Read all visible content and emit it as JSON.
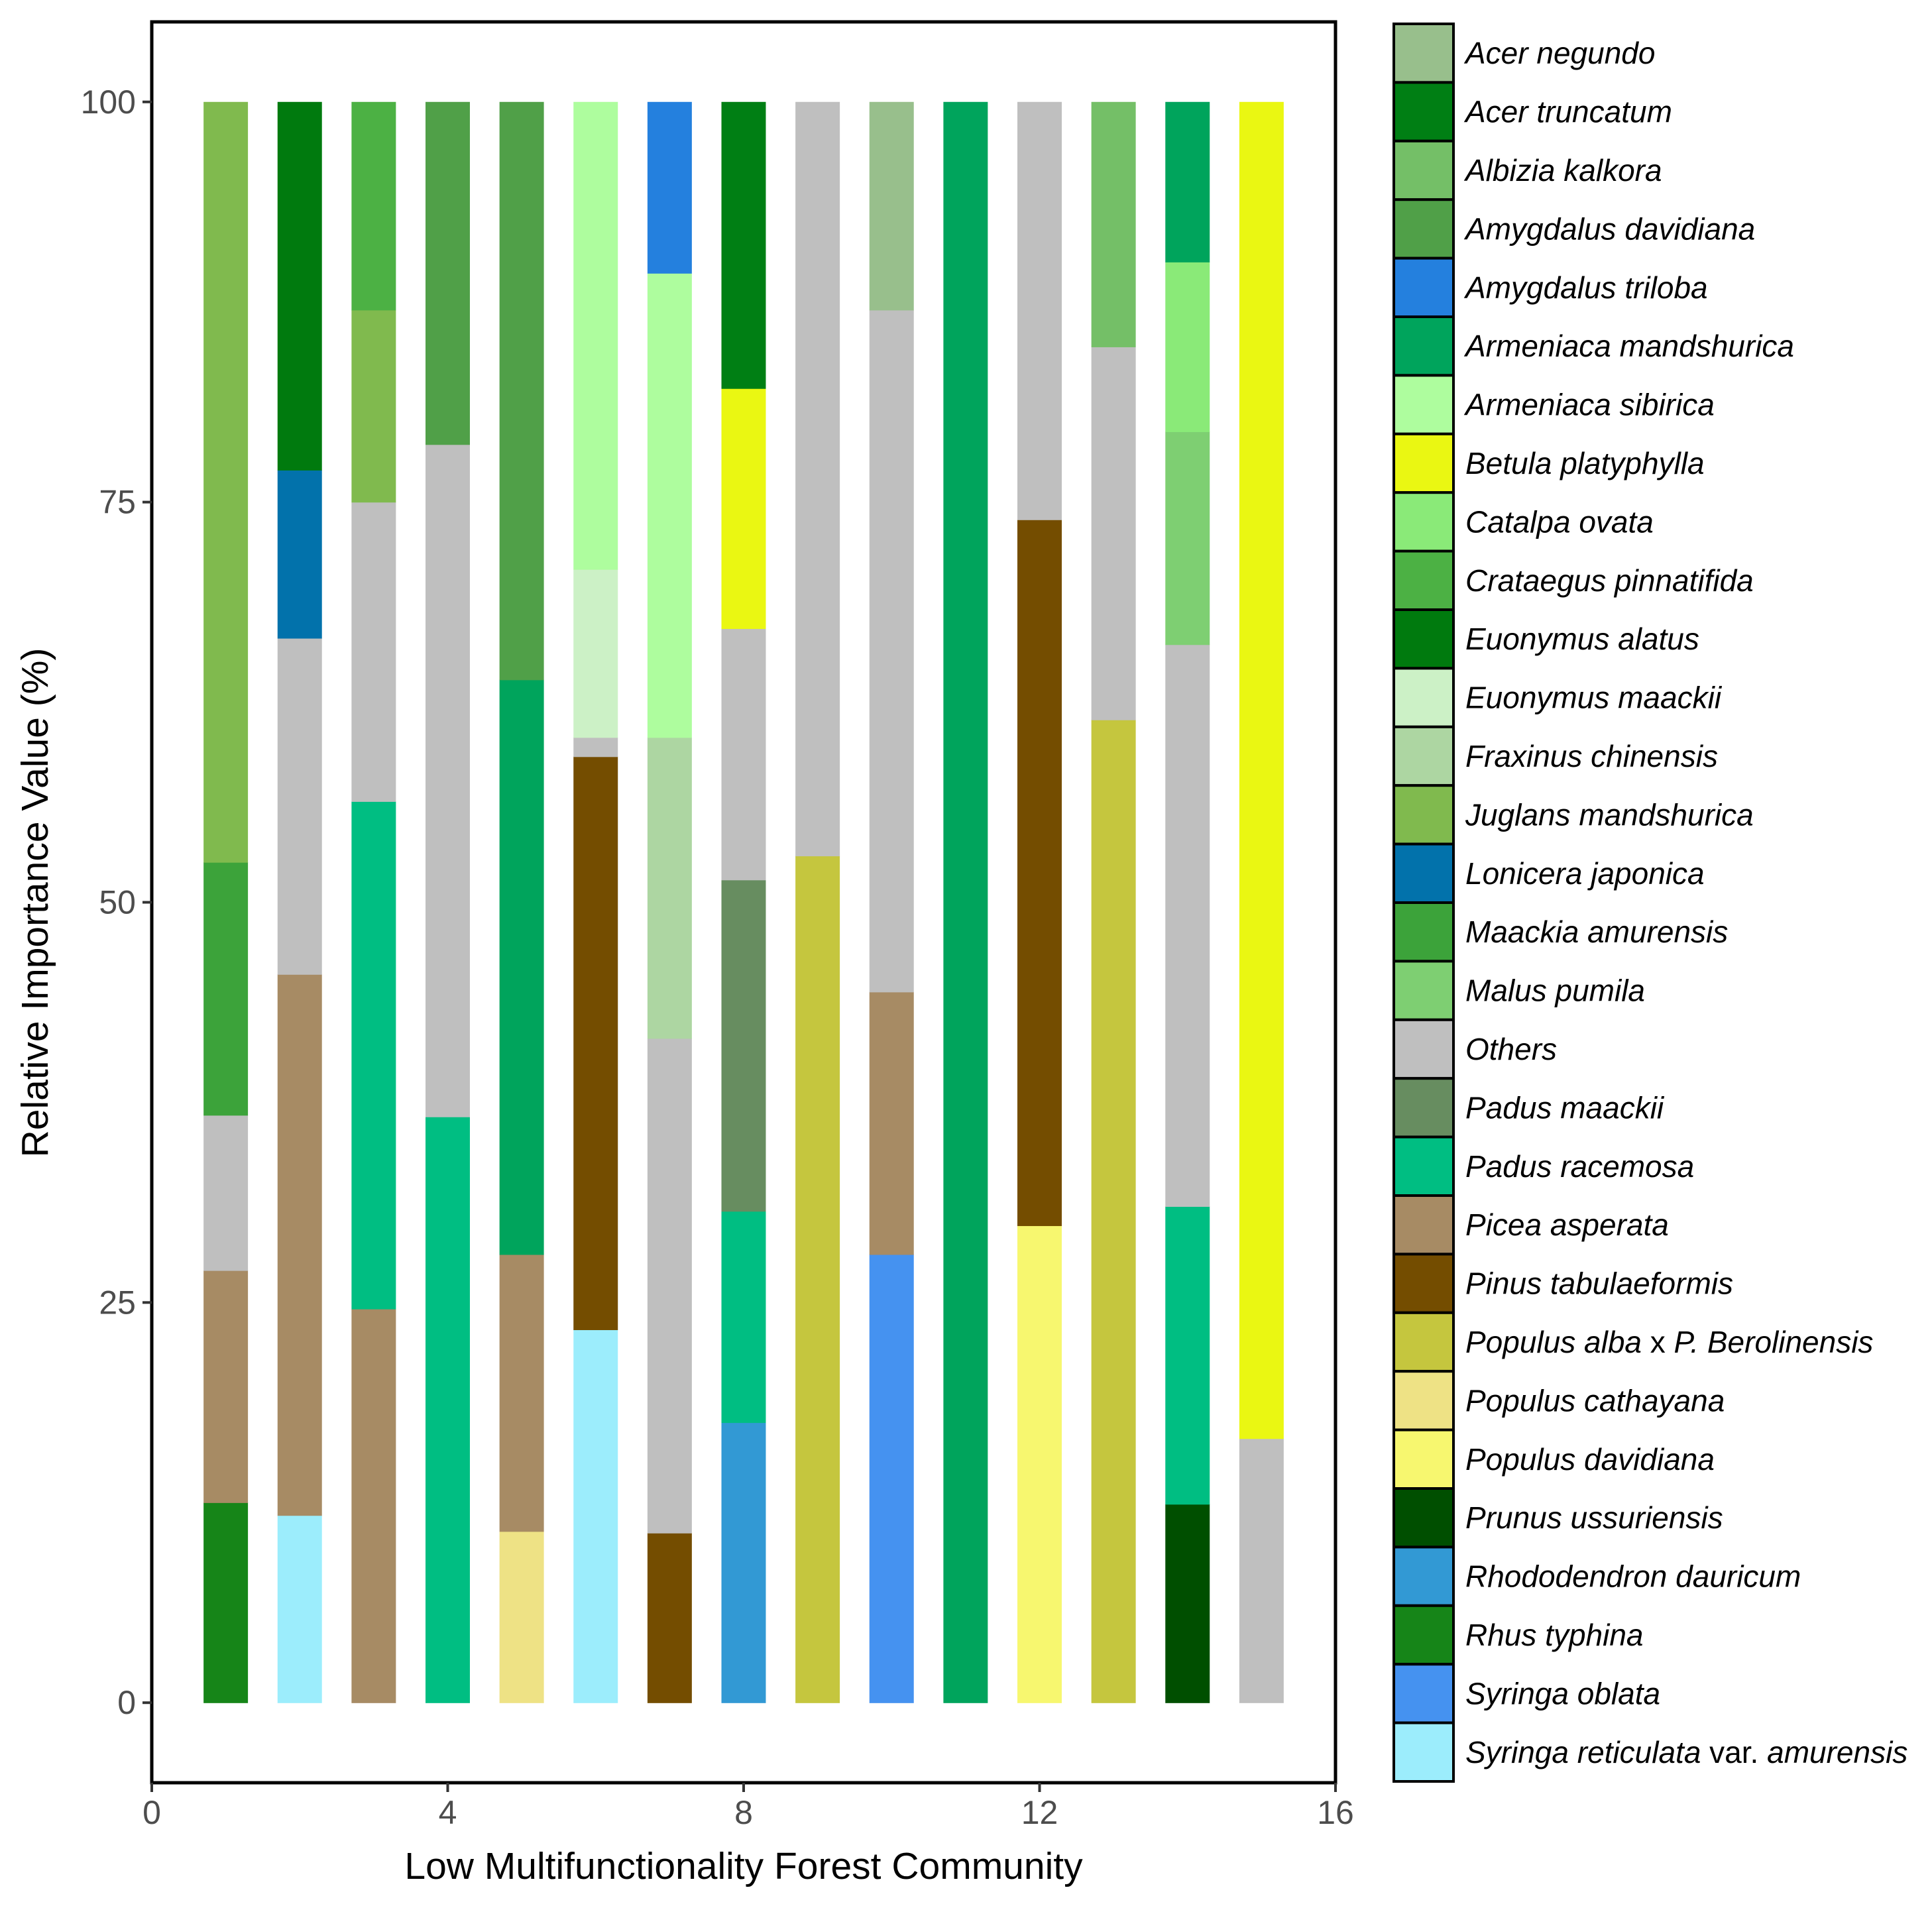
{
  "chart_data": {
    "type": "bar",
    "stacked": true,
    "xlabel": "Low Multifunctionality Forest Community",
    "ylabel": "Relative Importance Value (%)",
    "xlim": [
      0,
      16
    ],
    "ylim": [
      -5,
      105
    ],
    "x_ticks": [
      0,
      4,
      8,
      12,
      16
    ],
    "y_ticks": [
      0,
      25,
      50,
      75,
      100
    ],
    "legend_position": "right",
    "legend": [
      {
        "name": "Acer negundo",
        "color": "#98BF8C"
      },
      {
        "name": "Acer truncatum",
        "color": "#007F14"
      },
      {
        "name": "Albizia kalkora",
        "color": "#74BF67"
      },
      {
        "name": "Amygdalus davidiana",
        "color": "#50A048"
      },
      {
        "name": "Amygdalus triloba",
        "color": "#2480DE"
      },
      {
        "name": "Armeniaca mandshurica",
        "color": "#00A45C"
      },
      {
        "name": "Armeniaca sibirica",
        "color": "#AEFD9E"
      },
      {
        "name": "Betula platyphylla",
        "color": "#EAF712"
      },
      {
        "name": "Catalpa ovata",
        "color": "#8AEA78"
      },
      {
        "name": "Crataegus pinnatifida",
        "color": "#4CB144"
      },
      {
        "name": "Euonymus alatus",
        "color": "#007A0E"
      },
      {
        "name": "Euonymus maackii",
        "color": "#CCF1C6"
      },
      {
        "name": "Fraxinus chinensis",
        "color": "#ADD6A2"
      },
      {
        "name": "Juglans mandshurica",
        "color": "#80BA4E"
      },
      {
        "name": "Lonicera japonica",
        "color": "#0272AB"
      },
      {
        "name": "Maackia amurensis",
        "color": "#3CA33A"
      },
      {
        "name": "Malus pumila",
        "color": "#7ECF72"
      },
      {
        "name": "Others",
        "color": "#BFBFBF"
      },
      {
        "name": "Padus maackii",
        "color": "#678D60"
      },
      {
        "name": "Padus racemosa",
        "color": "#00BE82"
      },
      {
        "name": "Picea asperata",
        "color": "#A78B64"
      },
      {
        "name": "Pinus tabulaeformis",
        "color": "#744D00"
      },
      {
        "name": "Populus alba x P. Berolinensis",
        "color": "#C5C63E",
        "parts": [
          "Populus alba",
          " x ",
          "P. Berolinensis"
        ]
      },
      {
        "name": "Populus cathayana",
        "color": "#EEE285"
      },
      {
        "name": "Populus davidiana",
        "color": "#F7F76F"
      },
      {
        "name": "Prunus ussuriensis",
        "color": "#004F00"
      },
      {
        "name": "Rhododendron dauricum",
        "color": "#3299D4"
      },
      {
        "name": "Rhus typhina",
        "color": "#168518"
      },
      {
        "name": "Syringa oblata",
        "color": "#4592F0"
      },
      {
        "name": "Syringa reticulata var. amurensis",
        "color": "#9CEDFC",
        "parts": [
          "Syringa reticulata",
          " var. ",
          "amurensis"
        ]
      }
    ],
    "bars": [
      {
        "x": 1,
        "segments": [
          {
            "species": "Rhus typhina",
            "value": 12.5
          },
          {
            "species": "Picea asperata",
            "value": 14.5
          },
          {
            "species": "Others",
            "value": 9.7
          },
          {
            "species": "Maackia amurensis",
            "value": 15.8
          },
          {
            "species": "Juglans mandshurica",
            "value": 47.5
          }
        ]
      },
      {
        "x": 2,
        "segments": [
          {
            "species": "Syringa reticulata var. amurensis",
            "value": 11.7
          },
          {
            "species": "Picea asperata",
            "value": 33.8
          },
          {
            "species": "Others",
            "value": 21.0
          },
          {
            "species": "Lonicera japonica",
            "value": 10.5
          },
          {
            "species": "Euonymus alatus",
            "value": 23.0
          }
        ]
      },
      {
        "x": 3,
        "segments": [
          {
            "species": "Picea asperata",
            "value": 24.6
          },
          {
            "species": "Padus racemosa",
            "value": 31.7
          },
          {
            "species": "Others",
            "value": 18.7
          },
          {
            "species": "Juglans mandshurica",
            "value": 12.0
          },
          {
            "species": "Crataegus pinnatifida",
            "value": 13.0
          }
        ]
      },
      {
        "x": 4,
        "segments": [
          {
            "species": "Padus racemosa",
            "value": 36.6
          },
          {
            "species": "Others",
            "value": 42.0
          },
          {
            "species": "Amygdalus davidiana",
            "value": 21.4
          }
        ]
      },
      {
        "x": 5,
        "segments": [
          {
            "species": "Populus cathayana",
            "value": 10.7
          },
          {
            "species": "Picea asperata",
            "value": 17.3
          },
          {
            "species": "Armeniaca mandshurica",
            "value": 35.9
          },
          {
            "species": "Amygdalus davidiana",
            "value": 36.1
          }
        ]
      },
      {
        "x": 6,
        "segments": [
          {
            "species": "Syringa reticulata var. amurensis",
            "value": 23.3
          },
          {
            "species": "Pinus tabulaeformis",
            "value": 35.8
          },
          {
            "species": "Others",
            "value": 1.2
          },
          {
            "species": "Euonymus maackii",
            "value": 10.5
          },
          {
            "species": "Armeniaca sibirica",
            "value": 29.2
          }
        ]
      },
      {
        "x": 7,
        "segments": [
          {
            "species": "Pinus tabulaeformis",
            "value": 10.6
          },
          {
            "species": "Others",
            "value": 30.9
          },
          {
            "species": "Fraxinus chinensis",
            "value": 18.8
          },
          {
            "species": "Armeniaca sibirica",
            "value": 29.0
          },
          {
            "species": "Amygdalus triloba",
            "value": 10.7
          }
        ]
      },
      {
        "x": 8,
        "segments": [
          {
            "species": "Rhododendron dauricum",
            "value": 17.5
          },
          {
            "species": "Padus racemosa",
            "value": 13.2
          },
          {
            "species": "Padus maackii",
            "value": 20.7
          },
          {
            "species": "Others",
            "value": 15.7
          },
          {
            "species": "Betula platyphylla",
            "value": 15.0
          },
          {
            "species": "Acer truncatum",
            "value": 17.9
          }
        ]
      },
      {
        "x": 9,
        "segments": [
          {
            "species": "Populus alba x P. Berolinensis",
            "value": 52.9
          },
          {
            "species": "Others",
            "value": 47.1
          }
        ]
      },
      {
        "x": 10,
        "segments": [
          {
            "species": "Syringa oblata",
            "value": 28.0
          },
          {
            "species": "Picea asperata",
            "value": 16.4
          },
          {
            "species": "Others",
            "value": 42.6
          },
          {
            "species": "Acer negundo",
            "value": 13.0
          }
        ]
      },
      {
        "x": 11,
        "segments": [
          {
            "species": "Armeniaca mandshurica",
            "value": 100.0
          }
        ]
      },
      {
        "x": 12,
        "segments": [
          {
            "species": "Populus davidiana",
            "value": 29.8
          },
          {
            "species": "Pinus tabulaeformis",
            "value": 44.1
          },
          {
            "species": "Others",
            "value": 26.1
          }
        ]
      },
      {
        "x": 13,
        "segments": [
          {
            "species": "Populus alba x P. Berolinensis",
            "value": 61.4
          },
          {
            "species": "Others",
            "value": 23.3
          },
          {
            "species": "Albizia kalkora",
            "value": 15.3
          }
        ]
      },
      {
        "x": 14,
        "segments": [
          {
            "species": "Prunus ussuriensis",
            "value": 12.4
          },
          {
            "species": "Padus racemosa",
            "value": 18.6
          },
          {
            "species": "Others",
            "value": 35.1
          },
          {
            "species": "Malus pumila",
            "value": 13.3
          },
          {
            "species": "Catalpa ovata",
            "value": 10.6
          },
          {
            "species": "Armeniaca mandshurica",
            "value": 10.0
          }
        ]
      },
      {
        "x": 15,
        "segments": [
          {
            "species": "Others",
            "value": 16.5
          },
          {
            "species": "Betula platyphylla",
            "value": 83.5
          }
        ]
      }
    ]
  }
}
